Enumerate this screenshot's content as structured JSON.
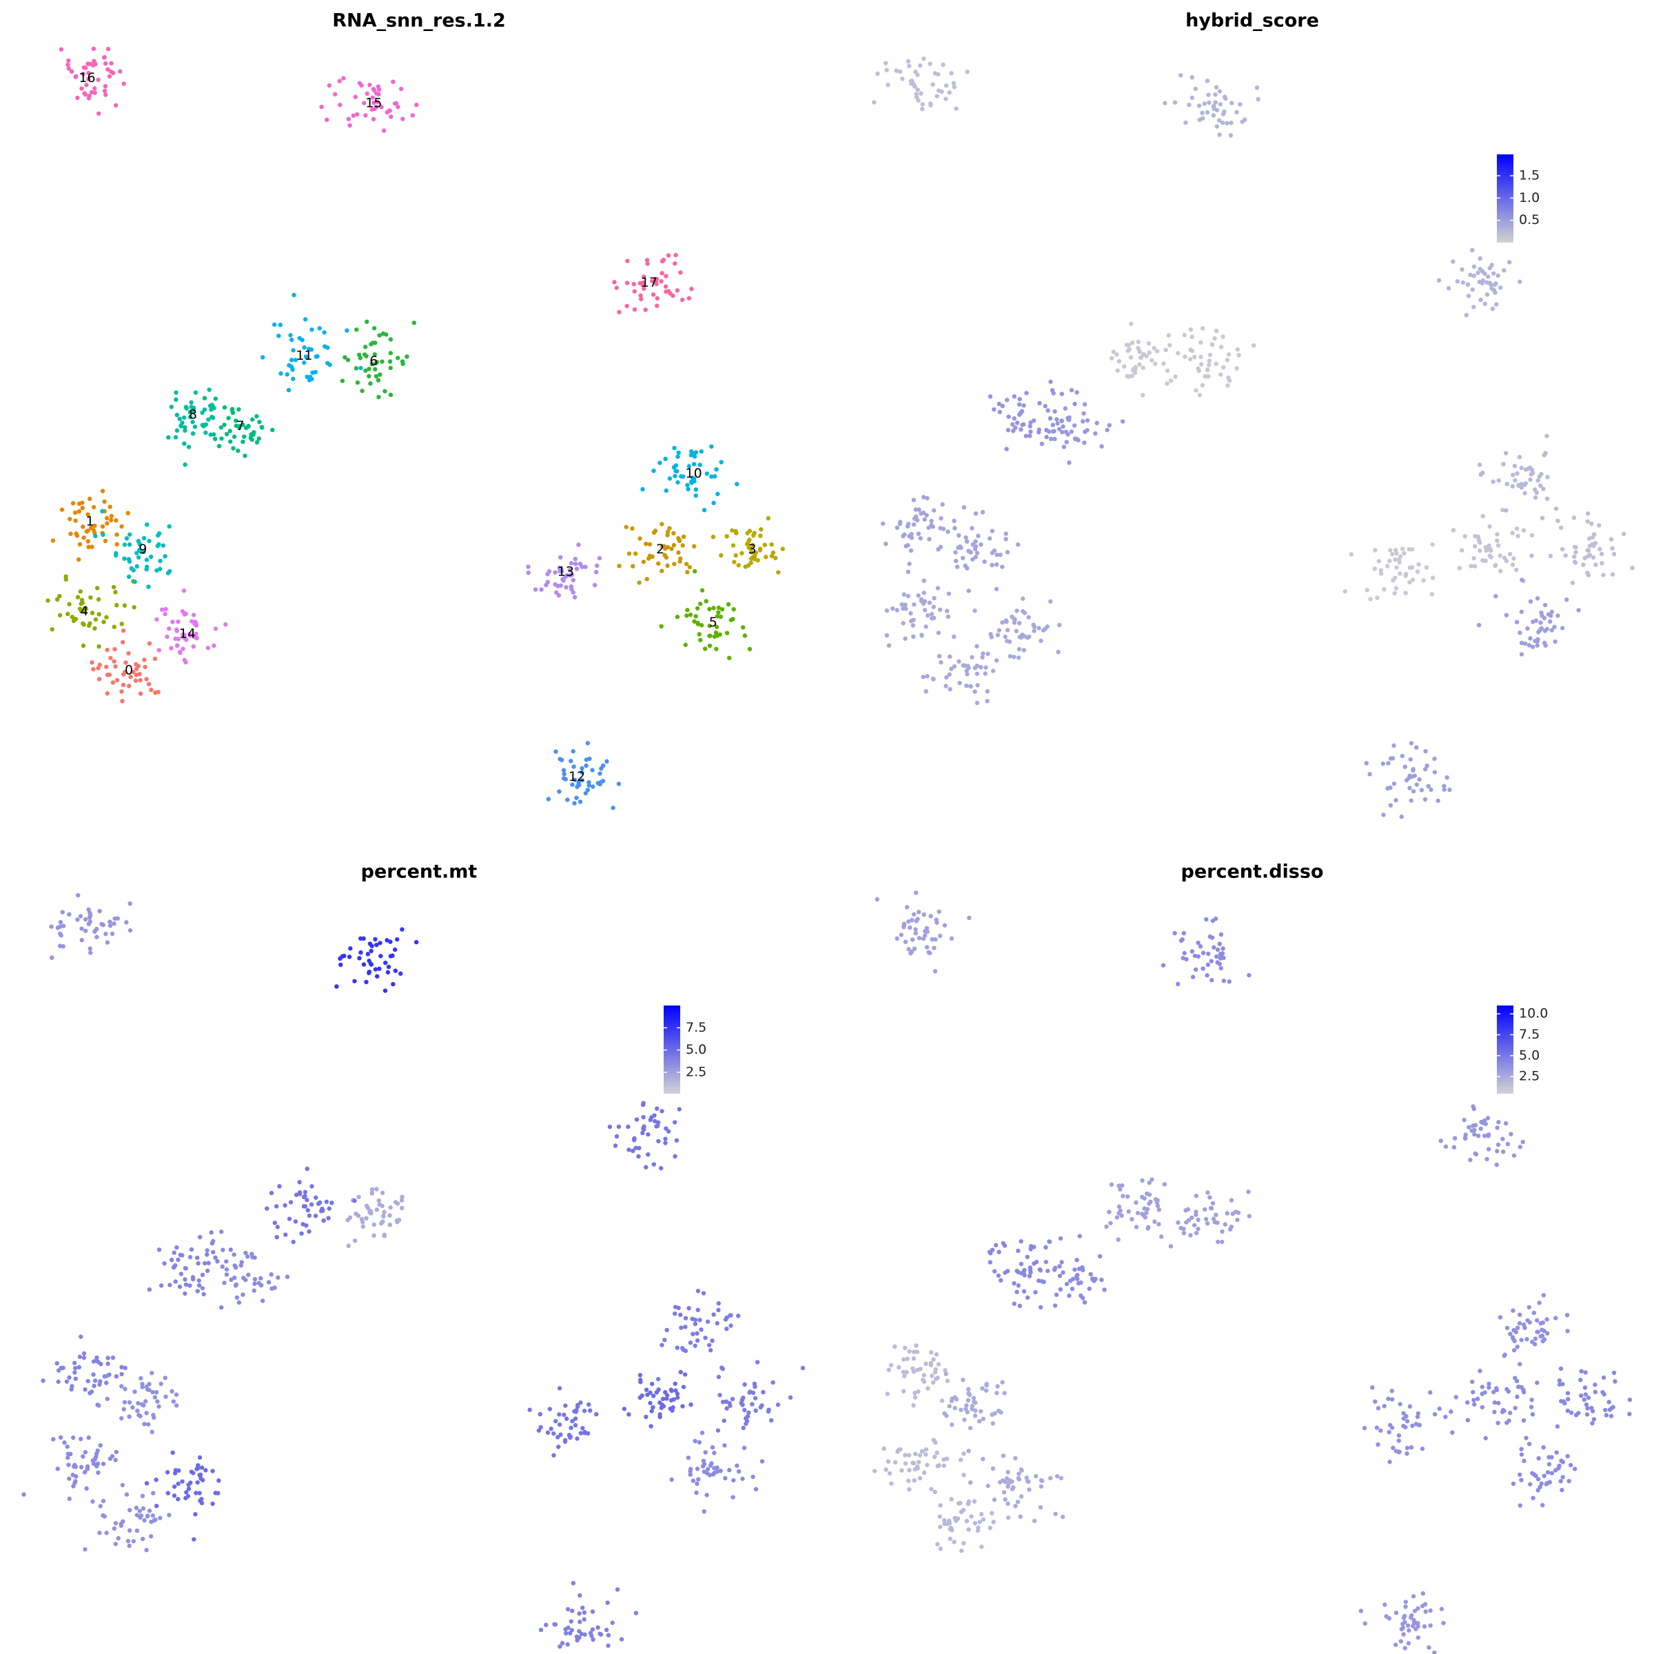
{
  "chart_data": [
    {
      "type": "scatter",
      "title": "RNA_snn_res.1.2",
      "categories": [
        "0",
        "1",
        "2",
        "3",
        "4",
        "5",
        "6",
        "7",
        "8",
        "9",
        "10",
        "11",
        "12",
        "13",
        "14",
        "15",
        "16",
        "17"
      ],
      "x": [
        -11.1,
        -12.5,
        8.0,
        11.3,
        -12.7,
        9.9,
        -2.3,
        -7.1,
        -8.8,
        -10.6,
        9.2,
        -4.8,
        5.0,
        4.6,
        -9.0,
        -2.3,
        -12.6,
        7.6
      ],
      "y": [
        -8.6,
        -3.3,
        -4.3,
        -4.3,
        -6.5,
        -6.9,
        2.4,
        0.1,
        0.5,
        -4.3,
        -1.6,
        2.6,
        -12.4,
        -5.1,
        -7.3,
        11.6,
        12.5,
        5.2
      ],
      "colors": [
        "#F8766D",
        "#E58700",
        "#C99800",
        "#B8A800",
        "#8EAA00",
        "#5FB000",
        "#2CB53A",
        "#00BC7A",
        "#00BE9A",
        "#00BDBE",
        "#00B4E0",
        "#0BB0F0",
        "#4A90F0",
        "#B08AF0",
        "#E07AF0",
        "#F266D0",
        "#F565B8",
        "#F8669E"
      ],
      "xlim": [
        -14,
        13
      ],
      "ylim": [
        -13,
        13
      ]
    },
    {
      "type": "feature",
      "title": "hybrid_score",
      "x": [
        -11.1,
        -12.5,
        8.0,
        11.3,
        -12.7,
        9.9,
        -2.3,
        -7.1,
        -8.8,
        -10.6,
        9.2,
        -4.8,
        5.0,
        4.6,
        -9.0,
        -2.3,
        -12.6,
        7.6
      ],
      "y": [
        -8.6,
        -3.3,
        -4.3,
        -4.3,
        -6.5,
        -6.9,
        2.4,
        0.1,
        0.5,
        -4.3,
        -1.6,
        2.6,
        -12.4,
        -5.1,
        -7.3,
        11.6,
        12.5,
        5.2
      ],
      "values": [
        0.4,
        0.45,
        0.15,
        0.2,
        0.4,
        0.5,
        0.1,
        0.55,
        0.6,
        0.45,
        0.25,
        0.1,
        0.5,
        0.1,
        0.4,
        0.3,
        0.2,
        0.3
      ],
      "xlim": [
        -14,
        13
      ],
      "ylim": [
        -13,
        13
      ],
      "clim": [
        0,
        1.98
      ],
      "cticks": [
        0.5,
        {
          "value": 1,
          "label": "1.0"
        },
        1.5
      ],
      "low_color": "#d3d3d3",
      "high_color": "#0000ff"
    },
    {
      "type": "feature",
      "title": "percent.mt",
      "x": [
        -11.1,
        -12.5,
        8.0,
        11.3,
        -12.7,
        9.9,
        -2.3,
        -7.1,
        -8.8,
        -10.6,
        9.2,
        -4.8,
        5.0,
        4.6,
        -9.0,
        -2.3,
        -12.6,
        7.6
      ],
      "y": [
        -8.6,
        -3.3,
        -4.3,
        -4.3,
        -6.5,
        -6.9,
        2.4,
        0.1,
        0.5,
        -4.3,
        -1.6,
        2.6,
        -12.4,
        -5.1,
        -7.3,
        11.6,
        12.5,
        5.2
      ],
      "values": [
        3.2,
        3.8,
        5.0,
        4.2,
        3.5,
        3.5,
        2.0,
        3.5,
        3.8,
        3.2,
        4.2,
        4.5,
        4.0,
        4.5,
        5.0,
        7.5,
        3.0,
        4.5
      ],
      "xlim": [
        -14,
        13
      ],
      "ylim": [
        -13,
        13
      ],
      "clim": [
        0.1,
        10
      ],
      "cticks": [
        2.5,
        {
          "value": 5,
          "label": "5.0"
        },
        7.5
      ],
      "low_color": "#d3d3d3",
      "high_color": "#0000ff"
    },
    {
      "type": "feature",
      "title": "percent.disso",
      "x": [
        -11.1,
        -12.5,
        8.0,
        11.3,
        -12.7,
        9.9,
        -2.3,
        -7.1,
        -8.8,
        -10.6,
        9.2,
        -4.8,
        5.0,
        4.6,
        -9.0,
        -2.3,
        -12.6,
        7.6
      ],
      "y": [
        -8.6,
        -3.3,
        -4.3,
        -4.3,
        -6.5,
        -6.9,
        2.4,
        0.1,
        0.5,
        -4.3,
        -1.6,
        2.6,
        -12.4,
        -5.1,
        -7.3,
        11.6,
        12.5,
        5.2
      ],
      "values": [
        1.8,
        1.6,
        4.0,
        4.2,
        1.7,
        4.0,
        3.0,
        4.0,
        4.2,
        2.5,
        3.8,
        3.0,
        3.5,
        3.8,
        2.5,
        4.0,
        3.0,
        3.5
      ],
      "xlim": [
        -14,
        13
      ],
      "ylim": [
        -13,
        13
      ],
      "clim": [
        0.45,
        11
      ],
      "cticks": [
        2.5,
        {
          "value": 5,
          "label": "5.0"
        },
        7.5,
        {
          "value": 10,
          "label": "10.0"
        }
      ],
      "low_color": "#d3d3d3",
      "high_color": "#0000ff"
    }
  ]
}
